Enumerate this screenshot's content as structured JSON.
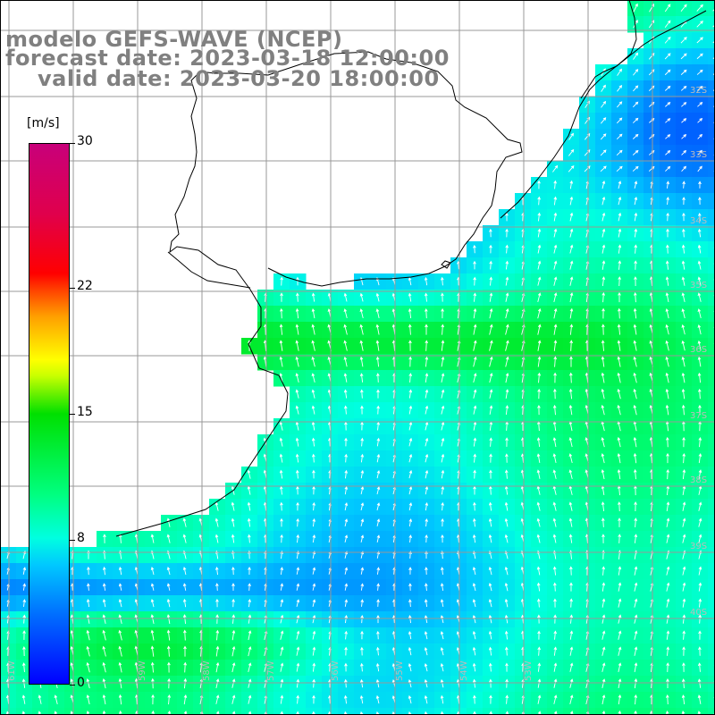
{
  "title": {
    "line1": "modelo GEFS-WAVE (NCEP)",
    "line2": "forecast date: 2023-03-18 12:00:00",
    "line3": "valid date: 2023-03-20 18:00:00"
  },
  "colorbar": {
    "unit": "[m/s]",
    "min": 0,
    "max": 30,
    "ticks": [
      {
        "label": "30",
        "value": 30
      },
      {
        "label": "22",
        "value": 22
      },
      {
        "label": "15",
        "value": 15
      },
      {
        "label": "8",
        "value": 8
      },
      {
        "label": "0",
        "value": 0
      }
    ],
    "colors": [
      "#0000ff",
      "#0070ff",
      "#00c8ff",
      "#00ffe0",
      "#00ff80",
      "#00e000",
      "#c8ff00",
      "#ffff00",
      "#ffa000",
      "#ff0000",
      "#c8007a"
    ]
  },
  "map": {
    "longitude_labels": [
      "61W",
      "59W",
      "58W",
      "57W",
      "56W",
      "55W",
      "54W",
      "53W"
    ],
    "latitude_labels": [
      "32S",
      "33S",
      "34S",
      "35S",
      "36S",
      "37S",
      "38S",
      "39S",
      "40S"
    ],
    "field": "wind speed",
    "colors": {
      "land": "#ffffff",
      "grid": "#999999",
      "coast": "#000000",
      "arrows": "#ffffff"
    }
  }
}
